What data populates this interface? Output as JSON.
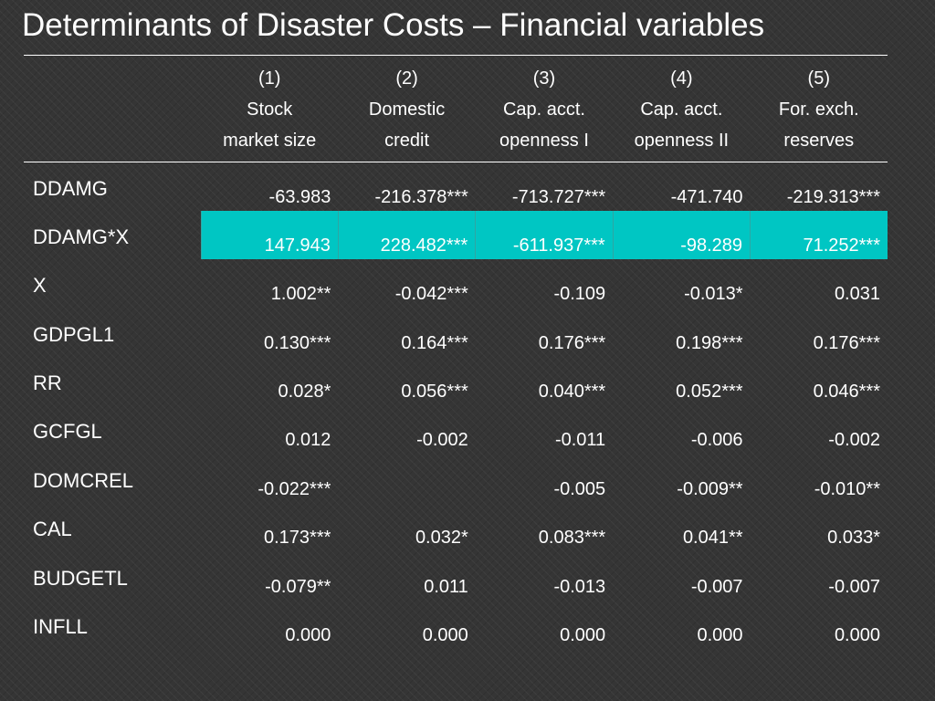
{
  "title": "Determinants of Disaster Costs – Financial variables",
  "colors": {
    "background": "#353535",
    "text": "#ffffff",
    "highlight_row": "#00c6c3"
  },
  "columns": [
    {
      "number": "(1)",
      "line1": "Stock",
      "line2": "market size"
    },
    {
      "number": "(2)",
      "line1": "Domestic",
      "line2": "credit"
    },
    {
      "number": "(3)",
      "line1": "Cap. acct.",
      "line2": "openness I"
    },
    {
      "number": "(4)",
      "line1": "Cap. acct.",
      "line2": "openness II"
    },
    {
      "number": "(5)",
      "line1": "For. exch.",
      "line2": "reserves"
    }
  ],
  "rows": [
    {
      "label": "DDAMG",
      "values": [
        "-63.983",
        "-216.378***",
        "-713.727***",
        "-471.740",
        "-219.313***"
      ]
    },
    {
      "label": "DDAMG*X",
      "values": [
        "147.943",
        "228.482***",
        "-611.937***",
        "-98.289",
        "71.252***"
      ]
    },
    {
      "label": "X",
      "values": [
        "1.002**",
        "-0.042***",
        "-0.109",
        "-0.013*",
        "0.031"
      ]
    },
    {
      "label": "GDPGL1",
      "values": [
        "0.130***",
        "0.164***",
        "0.176***",
        "0.198***",
        "0.176***"
      ]
    },
    {
      "label": "RR",
      "values": [
        "0.028*",
        "0.056***",
        "0.040***",
        "0.052***",
        "0.046***"
      ]
    },
    {
      "label": "GCFGL",
      "values": [
        "0.012",
        "-0.002",
        "-0.011",
        "-0.006",
        "-0.002"
      ]
    },
    {
      "label": "DOMCREL",
      "values": [
        "-0.022***",
        "",
        "-0.005",
        "-0.009**",
        "-0.010**"
      ]
    },
    {
      "label": "CAL",
      "values": [
        "0.173***",
        "0.032*",
        "0.083***",
        "0.041**",
        "0.033*"
      ]
    },
    {
      "label": "BUDGETL",
      "values": [
        "-0.079**",
        "0.011",
        "-0.013",
        "-0.007",
        "-0.007"
      ]
    },
    {
      "label": "INFLL",
      "values": [
        "0.000",
        "0.000",
        "0.000",
        "0.000",
        "0.000"
      ]
    }
  ]
}
